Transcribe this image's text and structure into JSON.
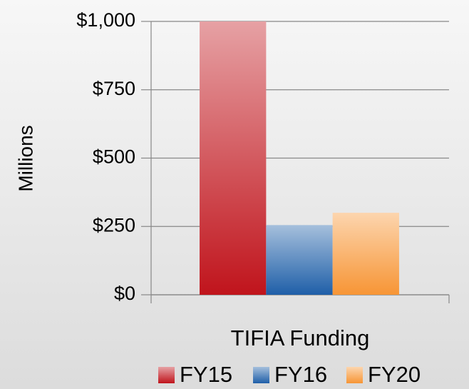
{
  "chart_data": {
    "type": "bar",
    "categories": [
      "TIFIA Funding"
    ],
    "series": [
      {
        "name": "FY15",
        "color": "#c0141c",
        "values": [
          1000
        ]
      },
      {
        "name": "FY16",
        "color": "#1f5fa8",
        "values": [
          255
        ]
      },
      {
        "name": "FY20",
        "color": "#f79535",
        "values": [
          300
        ]
      }
    ],
    "y_label": "Millions",
    "ylim": [
      0,
      1000
    ],
    "yticks": [
      {
        "value": 0,
        "label": "$0"
      },
      {
        "value": 250,
        "label": "$250"
      },
      {
        "value": 500,
        "label": "$500"
      },
      {
        "value": 750,
        "label": "$750"
      },
      {
        "value": 1000,
        "label": "$1,000"
      }
    ],
    "grid": true,
    "legend": "bottom"
  }
}
